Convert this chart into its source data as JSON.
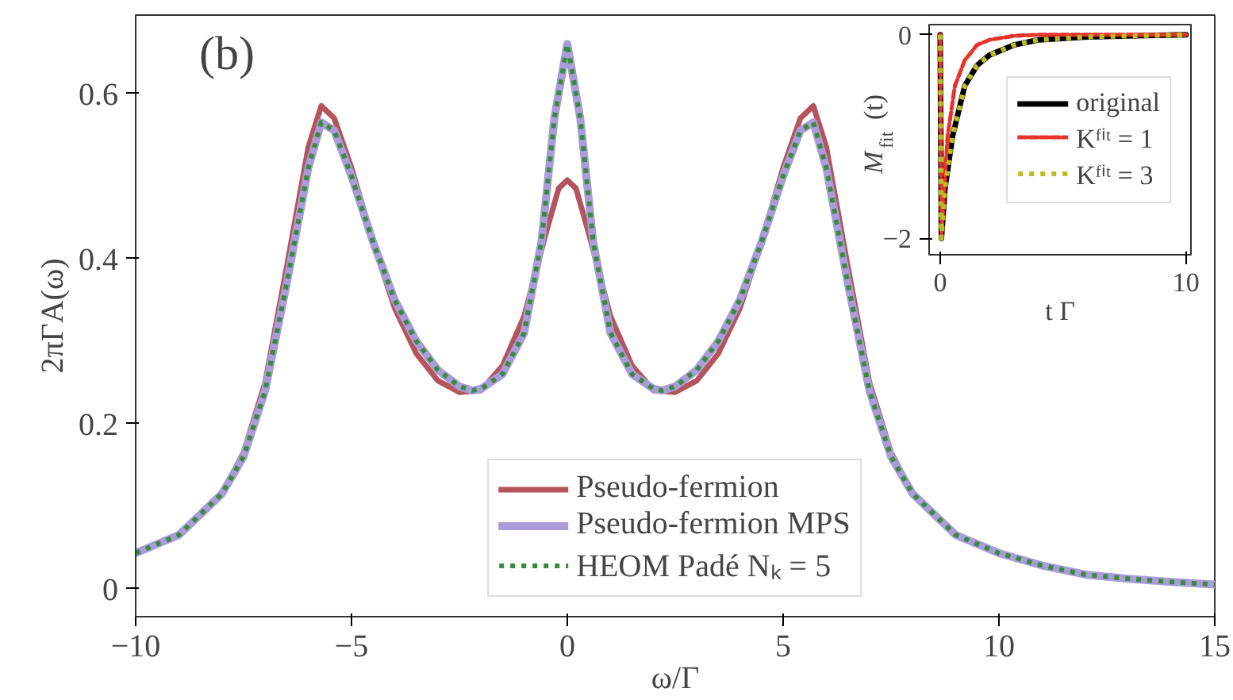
{
  "chart_data": [
    {
      "type": "line",
      "xlabel": "ω/Γ",
      "ylabel": "2πΓA(ω)",
      "annotations": [
        "(b)"
      ],
      "xlim": [
        -10,
        15
      ],
      "ylim": [
        -0.034,
        0.695
      ],
      "xticks": [
        {
          "value": -10,
          "label": "−10"
        },
        {
          "value": -5,
          "label": "−5"
        },
        0,
        5,
        10,
        15
      ],
      "yticks": [
        0,
        0.2,
        0.4,
        0.6
      ],
      "grid": false,
      "legend": "bottom",
      "series": [
        {
          "name": "Pseudo-fermion",
          "color": "#b4545c",
          "line_style": "solid",
          "x": [
            -10,
            -9,
            -8,
            -7.5,
            -7,
            -6.5,
            -6,
            -5.7,
            -5.4,
            -5,
            -4.5,
            -4,
            -3.5,
            -3,
            -2.5,
            -2,
            -1.5,
            -1,
            -0.5,
            -0.2,
            0,
            0.2,
            0.5,
            1,
            1.5,
            2,
            2.5,
            3,
            3.5,
            4,
            4.5,
            5,
            5.4,
            5.7,
            6,
            6.5,
            7,
            7.5,
            8,
            9
          ],
          "values": [
            0.043,
            0.065,
            0.115,
            0.165,
            0.25,
            0.39,
            0.535,
            0.585,
            0.57,
            0.51,
            0.42,
            0.34,
            0.285,
            0.252,
            0.238,
            0.24,
            0.27,
            0.33,
            0.43,
            0.485,
            0.495,
            0.485,
            0.43,
            0.33,
            0.27,
            0.24,
            0.238,
            0.252,
            0.285,
            0.34,
            0.42,
            0.51,
            0.57,
            0.585,
            0.535,
            0.39,
            0.25,
            0.165,
            0.115,
            0.065
          ]
        },
        {
          "name": "Pseudo-fermion MPS",
          "color": "#a99cd9",
          "line_style": "solid",
          "x": [
            -10,
            -9,
            -8,
            -7.5,
            -7,
            -6.5,
            -6,
            -5.7,
            -5.4,
            -5,
            -4.5,
            -4,
            -3.5,
            -3,
            -2.5,
            -2.2,
            -2,
            -1.5,
            -1,
            -0.6,
            -0.3,
            0,
            0.3,
            0.6,
            1,
            1.5,
            2,
            2.2,
            2.5,
            3,
            3.5,
            4,
            4.5,
            5,
            5.4,
            5.7,
            6,
            6.5,
            7,
            7.5,
            8,
            9,
            10,
            11,
            12,
            13,
            14,
            15
          ],
          "values": [
            0.043,
            0.065,
            0.115,
            0.16,
            0.24,
            0.37,
            0.51,
            0.565,
            0.555,
            0.5,
            0.42,
            0.35,
            0.3,
            0.265,
            0.245,
            0.24,
            0.242,
            0.26,
            0.31,
            0.42,
            0.57,
            0.66,
            0.57,
            0.42,
            0.31,
            0.26,
            0.242,
            0.24,
            0.245,
            0.265,
            0.3,
            0.35,
            0.42,
            0.5,
            0.555,
            0.565,
            0.51,
            0.37,
            0.24,
            0.16,
            0.115,
            0.065,
            0.043,
            0.028,
            0.017,
            0.012,
            0.008,
            0.005
          ]
        },
        {
          "name": "HEOM Padé Nₖ = 5",
          "color": "#3a8a3e",
          "line_style": "dotted",
          "x": [
            -10,
            -9,
            -8,
            -7.5,
            -7,
            -6.5,
            -6,
            -5.7,
            -5.4,
            -5,
            -4.5,
            -4,
            -3.5,
            -3,
            -2.5,
            -2.2,
            -2,
            -1.5,
            -1,
            -0.6,
            -0.3,
            0,
            0.3,
            0.6,
            1,
            1.5,
            2,
            2.2,
            2.5,
            3,
            3.5,
            4,
            4.5,
            5,
            5.4,
            5.7,
            6,
            6.5,
            7,
            7.5,
            8,
            9,
            10,
            11,
            12,
            13,
            14,
            15
          ],
          "values": [
            0.043,
            0.065,
            0.115,
            0.16,
            0.24,
            0.37,
            0.51,
            0.565,
            0.555,
            0.5,
            0.42,
            0.35,
            0.3,
            0.265,
            0.245,
            0.24,
            0.242,
            0.26,
            0.31,
            0.42,
            0.57,
            0.66,
            0.57,
            0.42,
            0.31,
            0.26,
            0.242,
            0.24,
            0.245,
            0.265,
            0.3,
            0.35,
            0.42,
            0.5,
            0.555,
            0.565,
            0.51,
            0.37,
            0.24,
            0.16,
            0.115,
            0.065,
            0.043,
            0.028,
            0.017,
            0.012,
            0.008,
            0.005
          ]
        }
      ]
    },
    {
      "type": "line",
      "xlabel": "t Γ",
      "ylabel": "M$_{fit}$(t)",
      "xlim": [
        -0.45,
        10.2
      ],
      "ylim": [
        -2.16,
        0.1
      ],
      "xticks": [
        0,
        10
      ],
      "yticks": [
        {
          "value": -2,
          "label": "−2"
        },
        0
      ],
      "grid": false,
      "legend": "right",
      "series": [
        {
          "name": "original",
          "color": "#000000",
          "line_style": "solid",
          "x": [
            0,
            0.05,
            0.2,
            0.5,
            1,
            1.5,
            2,
            3,
            4,
            6,
            8,
            10
          ],
          "values": [
            0,
            -2,
            -1.5,
            -1.0,
            -0.5,
            -0.3,
            -0.2,
            -0.1,
            -0.05,
            -0.02,
            -0.01,
            0
          ]
        },
        {
          "name": "Kᶠⁱᵗ = 1",
          "color": "#e8332b",
          "line_style": "dashed",
          "x": [
            0,
            0.05,
            0.3,
            0.6,
            1,
            1.5,
            2,
            3,
            4,
            6,
            8,
            10
          ],
          "values": [
            0,
            -2,
            -1.0,
            -0.5,
            -0.25,
            -0.1,
            -0.05,
            -0.01,
            0,
            0,
            0,
            0
          ]
        },
        {
          "name": "Kᶠⁱᵗ = 3",
          "color": "#bcbd22",
          "line_style": "dotted",
          "x": [
            0,
            0.05,
            0.2,
            0.5,
            1,
            1.5,
            2,
            3,
            4,
            6,
            8,
            10
          ],
          "values": [
            0,
            -2,
            -1.5,
            -1.0,
            -0.5,
            -0.3,
            -0.2,
            -0.1,
            -0.05,
            -0.02,
            -0.01,
            0
          ]
        }
      ]
    }
  ]
}
